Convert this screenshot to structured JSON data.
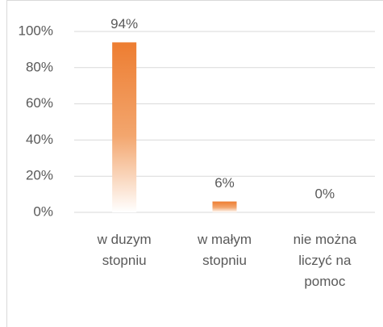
{
  "chart_data": {
    "type": "bar",
    "categories": [
      "w duzym stopniu",
      "w małym stopniu",
      "nie można liczyć na pomoc"
    ],
    "values": [
      94,
      6,
      0
    ],
    "value_labels": [
      "94%",
      "6%",
      "0%"
    ],
    "color": "#ed7d31",
    "ylim": [
      0,
      100
    ],
    "yticks": [
      {
        "value": 0,
        "label": "0%"
      },
      {
        "value": 20,
        "label": "20%"
      },
      {
        "value": 40,
        "label": "40%"
      },
      {
        "value": 60,
        "label": "60%"
      },
      {
        "value": 80,
        "label": "80%"
      },
      {
        "value": 100,
        "label": "100%"
      }
    ],
    "grid": true
  }
}
